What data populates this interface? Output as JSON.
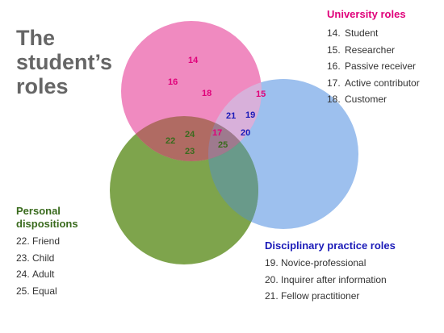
{
  "title": {
    "line1": "The",
    "line2": "student’s",
    "line3": "roles"
  },
  "colors": {
    "university": "#e0007a",
    "personal": "#3a6b1e",
    "disciplinary": "#1a1ab8",
    "title": "#666666",
    "circle_university": "#f08ac0",
    "circle_personal": "#7ea44c",
    "circle_disciplinary": "#9dc0ee"
  },
  "groups": {
    "university": {
      "heading": "University roles",
      "items": [
        {
          "num": "14.",
          "label": "Student"
        },
        {
          "num": "15.",
          "label": "Researcher"
        },
        {
          "num": "16.",
          "label": "Passive receiver"
        },
        {
          "num": "17.",
          "label": "Active contributor"
        },
        {
          "num": "18.",
          "label": "Customer"
        }
      ]
    },
    "personal": {
      "heading_line1": "Personal",
      "heading_line2": "dispositions",
      "items": [
        {
          "num": "22.",
          "label": "Friend"
        },
        {
          "num": "23.",
          "label": "Child"
        },
        {
          "num": "24.",
          "label": "Adult"
        },
        {
          "num": "25.",
          "label": "Equal"
        }
      ]
    },
    "disciplinary": {
      "heading": "Disciplinary practice roles",
      "items": [
        {
          "num": "19.",
          "label": "Novice-professional"
        },
        {
          "num": "20.",
          "label": "Inquirer after information"
        },
        {
          "num": "21.",
          "label": "Fellow practitioner"
        }
      ]
    }
  },
  "region_numbers": [
    {
      "text": "14",
      "group": "university"
    },
    {
      "text": "16",
      "group": "university"
    },
    {
      "text": "18",
      "group": "university"
    },
    {
      "text": "15",
      "group": "university"
    },
    {
      "text": "17",
      "group": "university"
    },
    {
      "text": "21",
      "group": "disciplinary"
    },
    {
      "text": "19",
      "group": "disciplinary"
    },
    {
      "text": "20",
      "group": "disciplinary"
    },
    {
      "text": "22",
      "group": "personal"
    },
    {
      "text": "24",
      "group": "personal"
    },
    {
      "text": "23",
      "group": "personal"
    },
    {
      "text": "25",
      "group": "personal"
    }
  ]
}
